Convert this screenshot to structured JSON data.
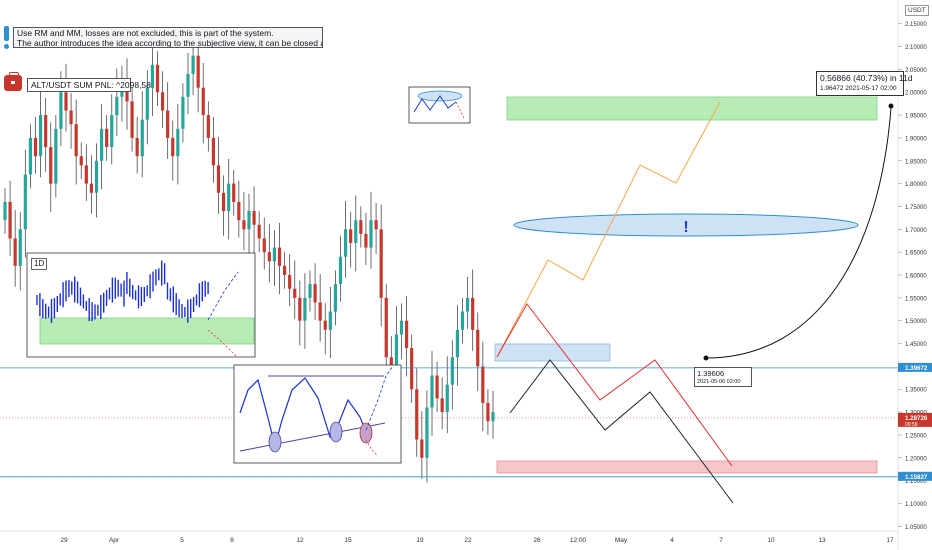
{
  "chart_data": {
    "type": "candlestick",
    "currency": "USDT",
    "y_range": [
      1.02,
      2.18
    ],
    "y_ticks": [
      "2.15000",
      "2.10000",
      "2.05000",
      "2.00000",
      "1.95000",
      "1.90000",
      "1.85000",
      "1.80000",
      "1.75000",
      "1.70000",
      "1.65000",
      "1.60000",
      "1.55000",
      "1.50000",
      "1.45000",
      "1.40000",
      "1.35000",
      "1.30000",
      "1.25000",
      "1.20000",
      "1.15000",
      "1.10000",
      "1.05000"
    ],
    "x_ticks": [
      "29",
      "Apr",
      "5",
      "8",
      "12",
      "15",
      "19",
      "22",
      "26",
      "12:00",
      "May",
      "4",
      "7",
      "10",
      "13",
      "17"
    ],
    "price_badges": [
      {
        "label": "1.39672",
        "value": 1.39672,
        "color": "#2f8fd1"
      },
      {
        "label": "1.28726",
        "sub": "09:59",
        "value": 1.28726,
        "color": "#c8372d"
      },
      {
        "label": "1.15827",
        "value": 1.15827,
        "color": "#2f8fd1"
      }
    ],
    "closes": [
      1.76,
      1.68,
      1.62,
      1.7,
      1.82,
      1.9,
      1.86,
      1.95,
      1.88,
      1.8,
      1.92,
      2.0,
      1.96,
      1.93,
      1.86,
      1.84,
      1.8,
      1.78,
      1.85,
      1.92,
      1.88,
      1.95,
      1.99,
      2.02,
      1.98,
      1.9,
      1.86,
      1.94,
      2.01,
      2.06,
      2.0,
      1.96,
      1.9,
      1.86,
      1.92,
      1.99,
      2.04,
      2.08,
      2.01,
      1.95,
      1.9,
      1.84,
      1.78,
      1.74,
      1.8,
      1.76,
      1.72,
      1.7,
      1.74,
      1.71,
      1.68,
      1.65,
      1.63,
      1.66,
      1.62,
      1.6,
      1.57,
      1.55,
      1.5,
      1.55,
      1.58,
      1.54,
      1.5,
      1.48,
      1.52,
      1.58,
      1.64,
      1.7,
      1.67,
      1.72,
      1.69,
      1.66,
      1.72,
      1.7,
      1.55,
      1.42,
      1.38,
      1.47,
      1.5,
      1.44,
      1.35,
      1.24,
      1.2,
      1.31,
      1.38,
      1.33,
      1.3,
      1.36,
      1.42,
      1.48,
      1.52,
      1.55,
      1.48,
      1.4,
      1.32,
      1.28,
      1.3
    ],
    "levels": [
      1.39672,
      1.15827,
      1.28726
    ]
  },
  "note": {
    "line1": "Use RM and MM, losses are not excluded, this is part of the system.",
    "line2": "The author introduces the idea according to the subjective view, it can be closed at any time."
  },
  "pnl": {
    "label": "ALT/USDT SUM PNL: ^2098,58."
  },
  "stat": {
    "main": "0.56866 (40.73%) in 11d",
    "sub": "1.96472   2021-05-17  02:00"
  },
  "point": {
    "main": "1.39606",
    "sub": "2021-05-06 02:00"
  },
  "timeframe": "1D",
  "alert_mark": "!",
  "colors": {
    "up": "#26a69a",
    "down": "#c8372d",
    "wick": "#4a4a4a",
    "blue": "#2f8fd1",
    "green_zone": "#b7ecb7",
    "red_zone": "#f7c6c9",
    "blue_zone": "#cfe2f5",
    "orange": "#f2a64a"
  }
}
